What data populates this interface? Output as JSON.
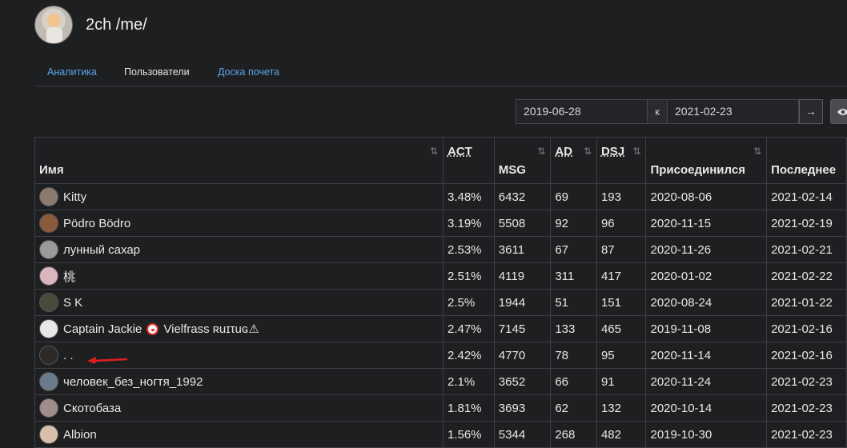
{
  "app": {
    "title": "2ch /me/"
  },
  "tabs": [
    {
      "label": "Аналитика",
      "active": false
    },
    {
      "label": "Пользователи",
      "active": true
    },
    {
      "label": "Доска почета",
      "active": false
    }
  ],
  "date_range": {
    "from": "2019-06-28",
    "separator": "к",
    "to": "2021-02-23",
    "go_icon": "→"
  },
  "table": {
    "headers": {
      "name": "Имя",
      "act": "ACT",
      "msg": "MSG",
      "ad": "AD",
      "dsj": "DSJ",
      "joined": "Присоединился",
      "last": "Последнее",
      "sort_icon": "⇅"
    },
    "rows": [
      {
        "name": "Kitty",
        "act": "3.48%",
        "msg": "6432",
        "ad": "69",
        "dsj": "193",
        "joined": "2020-08-06",
        "last": "2021-02-14",
        "avatar_color": "#8a7a70"
      },
      {
        "name": "Pödro Bödro",
        "act": "3.19%",
        "msg": "5508",
        "ad": "92",
        "dsj": "96",
        "joined": "2020-11-15",
        "last": "2021-02-19",
        "avatar_color": "#8b5a3c"
      },
      {
        "name": "лунный сахар",
        "act": "2.53%",
        "msg": "3611",
        "ad": "67",
        "dsj": "87",
        "joined": "2020-11-26",
        "last": "2021-02-21",
        "avatar_color": "#9a9a9a"
      },
      {
        "name": "桃",
        "act": "2.51%",
        "msg": "4119",
        "ad": "311",
        "dsj": "417",
        "joined": "2020-01-02",
        "last": "2021-02-22",
        "avatar_color": "#d9b5bd"
      },
      {
        "name": "S K",
        "act": "2.5%",
        "msg": "1944",
        "ad": "51",
        "dsj": "151",
        "joined": "2020-08-24",
        "last": "2021-01-22",
        "avatar_color": "#4a4a3a"
      },
      {
        "name": "Captain Jackie",
        "suffix": "Vielfrass ʀuɪτuɢ⚠",
        "act": "2.47%",
        "msg": "7145",
        "ad": "133",
        "dsj": "465",
        "joined": "2019-11-08",
        "last": "2021-02-16",
        "avatar_color": "#e8e8e8"
      },
      {
        "name": ". .",
        "act": "2.42%",
        "msg": "4770",
        "ad": "78",
        "dsj": "95",
        "joined": "2020-11-14",
        "last": "2021-02-16",
        "avatar_color": "#2e2a28"
      },
      {
        "name": "человек_без_ногтя_1992",
        "act": "2.1%",
        "msg": "3652",
        "ad": "66",
        "dsj": "91",
        "joined": "2020-11-24",
        "last": "2021-02-23",
        "avatar_color": "#6b7b8b"
      },
      {
        "name": "Скотобаза",
        "act": "1.81%",
        "msg": "3693",
        "ad": "62",
        "dsj": "132",
        "joined": "2020-10-14",
        "last": "2021-02-23",
        "avatar_color": "#a08c8c"
      },
      {
        "name": "Albion",
        "act": "1.56%",
        "msg": "5344",
        "ad": "268",
        "dsj": "482",
        "joined": "2019-10-30",
        "last": "2021-02-23",
        "avatar_color": "#d8c0a8"
      }
    ]
  },
  "colors": {
    "background": "#1e1f21",
    "link": "#5aa3e8",
    "annotation_arrow": "#e02020"
  }
}
